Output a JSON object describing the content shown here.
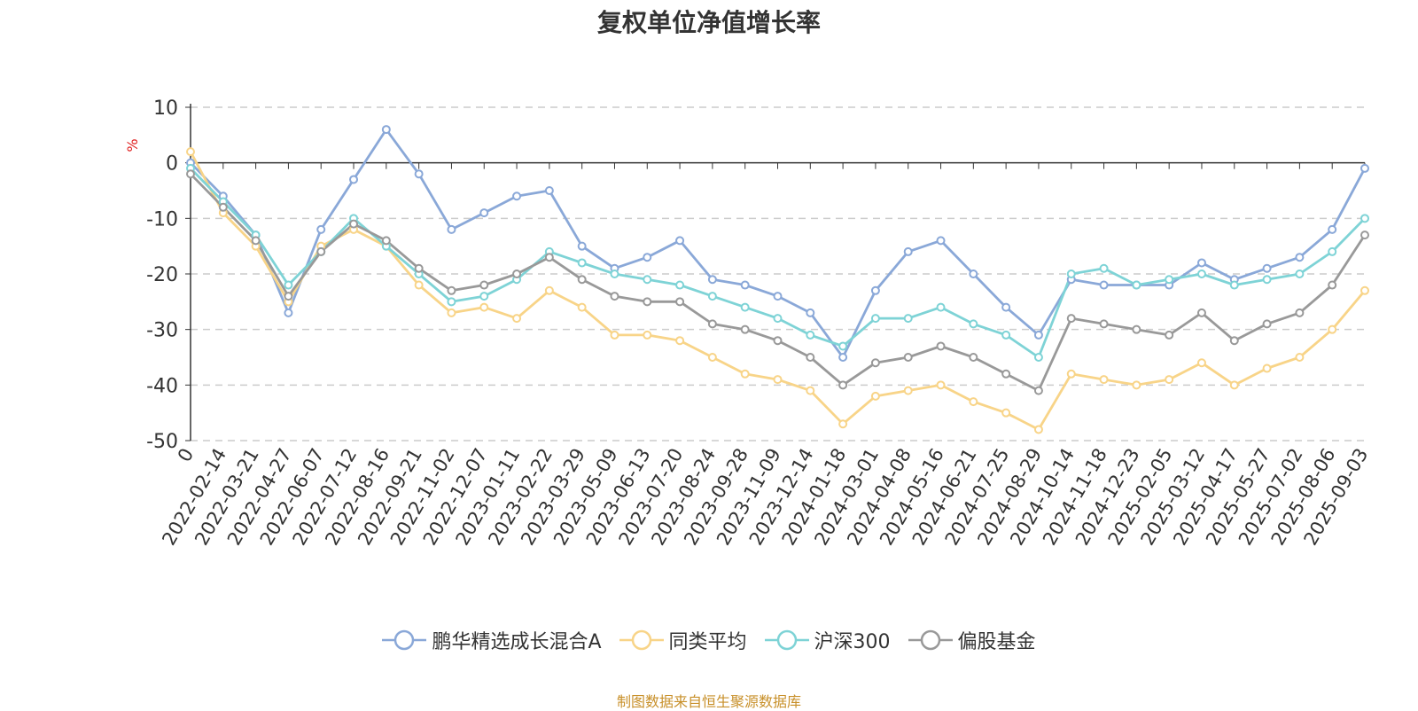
{
  "source_note": "制图数据来自恒生聚源数据库",
  "chart_data": {
    "type": "line",
    "title": "复权单位净值增长率",
    "ylabel": "%",
    "ylim": [
      -50,
      10
    ],
    "yticks": [
      10,
      0,
      -10,
      -20,
      -30,
      -40,
      -50
    ],
    "grid": true,
    "legend_position": "bottom",
    "x_tick_labels": [
      "0",
      "2022-02-14",
      "2022-03-21",
      "2022-04-27",
      "2022-06-07",
      "2022-07-12",
      "2022-08-16",
      "2022-09-21",
      "2022-11-02",
      "2022-12-07",
      "2023-01-11",
      "2023-02-22",
      "2023-03-29",
      "2023-05-09",
      "2023-06-13",
      "2023-07-20",
      "2023-08-24",
      "2023-09-28",
      "2023-11-09",
      "2023-12-14",
      "2024-01-18",
      "2024-03-01",
      "2024-04-08",
      "2024-05-16",
      "2024-06-21",
      "2024-07-25",
      "2024-08-29",
      "2024-10-14",
      "2024-11-18",
      "2024-12-23",
      "2025-02-05",
      "2025-03-12",
      "2025-04-17",
      "2025-05-27",
      "2025-07-02",
      "2025-08-06",
      "2025-09-03"
    ],
    "x_positions": [
      0,
      1,
      2,
      3,
      4,
      5,
      6,
      7,
      8,
      9,
      10,
      11,
      12,
      13,
      14,
      15,
      16,
      17,
      18,
      19,
      20,
      21,
      22,
      23,
      24,
      25,
      26,
      27,
      28,
      29,
      30,
      31,
      32,
      33,
      34,
      35,
      36
    ],
    "series": [
      {
        "name": "鹏华精选成长混合A",
        "color": "#8aa8d8",
        "values": [
          0,
          -6,
          -13,
          -27,
          -12,
          -3,
          6,
          -2,
          -12,
          -9,
          -6,
          -5,
          -15,
          -19,
          -17,
          -14,
          -21,
          -22,
          -24,
          -27,
          -35,
          -23,
          -16,
          -14,
          -20,
          -26,
          -31,
          -21,
          -22,
          -22,
          -22,
          -18,
          -21,
          -19,
          -17,
          -12,
          -1
        ]
      },
      {
        "name": "同类平均",
        "color": "#f8d488",
        "values": [
          2,
          -9,
          -15,
          -25,
          -15,
          -12,
          -15,
          -22,
          -27,
          -26,
          -28,
          -23,
          -26,
          -31,
          -31,
          -32,
          -35,
          -38,
          -39,
          -41,
          -47,
          -42,
          -41,
          -40,
          -43,
          -45,
          -48,
          -38,
          -39,
          -40,
          -39,
          -36,
          -40,
          -37,
          -35,
          -30,
          -23
        ]
      },
      {
        "name": "沪深300",
        "color": "#7ed3d6",
        "values": [
          -1,
          -7,
          -13,
          -22,
          -16,
          -10,
          -15,
          -20,
          -25,
          -24,
          -21,
          -16,
          -18,
          -20,
          -21,
          -22,
          -24,
          -26,
          -28,
          -31,
          -33,
          -28,
          -28,
          -26,
          -29,
          -31,
          -35,
          -20,
          -19,
          -22,
          -21,
          -20,
          -22,
          -21,
          -20,
          -16,
          -10
        ]
      },
      {
        "name": "偏股基金",
        "color": "#999999",
        "values": [
          -2,
          -8,
          -14,
          -24,
          -16,
          -11,
          -14,
          -19,
          -23,
          -22,
          -20,
          -17,
          -21,
          -24,
          -25,
          -25,
          -29,
          -30,
          -32,
          -35,
          -40,
          -36,
          -35,
          -33,
          -35,
          -38,
          -41,
          -28,
          -29,
          -30,
          -31,
          -27,
          -32,
          -29,
          -27,
          -22,
          -13
        ]
      }
    ]
  }
}
